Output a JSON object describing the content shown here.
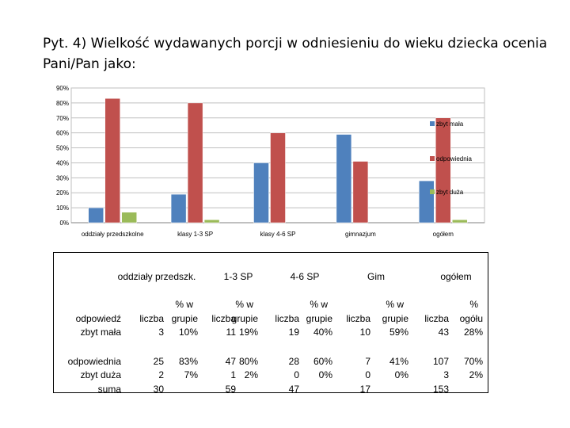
{
  "title": "Pyt. 4) Wielkość wydawanych porcji w odniesieniu do wieku dziecka ocenia Pani/Pan jako:",
  "chart_data": {
    "type": "bar",
    "categories": [
      "oddziały przedszkolne",
      "klasy 1-3 SP",
      "klasy 4-6 SP",
      "gimnazjum",
      "ogółem"
    ],
    "series": [
      {
        "name": "zbyt mała",
        "color": "#4f81bd",
        "values": [
          10,
          19,
          40,
          59,
          28
        ]
      },
      {
        "name": "odpowiednia",
        "color": "#c0504d",
        "values": [
          83,
          80,
          60,
          41,
          70
        ]
      },
      {
        "name": "zbyt duża",
        "color": "#9bbb59",
        "values": [
          7,
          2,
          0,
          0,
          2
        ]
      }
    ],
    "yticks": [
      "0%",
      "10%",
      "20%",
      "30%",
      "40%",
      "50%",
      "60%",
      "70%",
      "80%",
      "90%"
    ],
    "ylim": [
      0,
      90
    ],
    "grid": true,
    "legend": "right"
  },
  "table": {
    "group_headers": [
      "oddziały przedszk.",
      "1-3 SP",
      "4-6 SP",
      "Gim",
      "ogółem"
    ],
    "row_label_header": "odpowiedź",
    "liczba_label": "liczba",
    "pct_top": "% w",
    "pct_bottom": "grupie",
    "ogol_pct_top": "%",
    "ogol_pct_bottom": "ogółu",
    "rows": [
      {
        "label": "zbyt mała",
        "cells": [
          "3",
          "10%",
          "11",
          "19%",
          "19",
          "40%",
          "10",
          "59%",
          "43",
          "28%"
        ]
      },
      {
        "label": "odpowiednia",
        "cells": [
          "25",
          "83%",
          "47",
          "80%",
          "28",
          "60%",
          "7",
          "41%",
          "107",
          "70%"
        ]
      },
      {
        "label": "zbyt duża",
        "cells": [
          "2",
          "7%",
          "1",
          "2%",
          "0",
          "0%",
          "0",
          "0%",
          "3",
          "2%"
        ]
      },
      {
        "label": "suma",
        "cells": [
          "30",
          "",
          "59",
          "",
          "47",
          "",
          "17",
          "",
          "153",
          ""
        ]
      }
    ]
  }
}
